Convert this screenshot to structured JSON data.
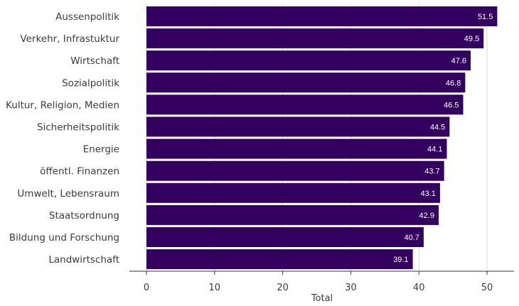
{
  "chart_data": {
    "type": "bar",
    "orientation": "horizontal",
    "categories": [
      "Aussenpolitik",
      "Verkehr, Infrastuktur",
      "Wirtschaft",
      "Sozialpolitik",
      "Kultur, Religion, Medien",
      "Sicherheitspolitik",
      "Energie",
      "öffentl. Finanzen",
      "Umwelt, Lebensraum",
      "Staatsordnung",
      "Bildung und Forschung",
      "Landwirtschaft"
    ],
    "values": [
      51.5,
      49.5,
      47.6,
      46.8,
      46.5,
      44.5,
      44.1,
      43.7,
      43.1,
      42.9,
      40.7,
      39.1
    ],
    "data_labels": [
      "51.5",
      "49.5",
      "47.6",
      "46.8",
      "46.5",
      "44.5",
      "44.1",
      "43.7",
      "43.1",
      "42.9",
      "40.7",
      "39.1"
    ],
    "xlabel": "Total",
    "xlim": [
      0,
      55
    ],
    "xticks": [
      0,
      10,
      20,
      30,
      40,
      50
    ],
    "grid": "vertical",
    "legend": "none",
    "colors": {
      "bar": "#34005f",
      "grid": "#d9d9d9",
      "axis": "#333333",
      "label_text": "#ffffff"
    }
  }
}
